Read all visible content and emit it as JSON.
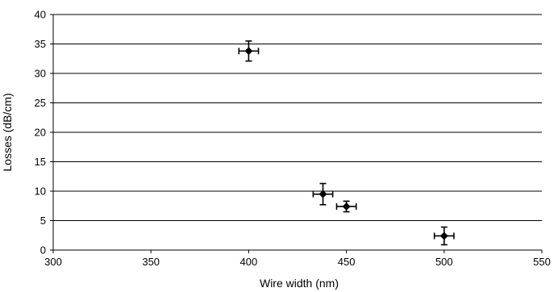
{
  "chart_data": {
    "type": "scatter",
    "title": "",
    "xlabel": "Wire width (nm)",
    "ylabel": "Losses (dB/cm)",
    "xlim": [
      300,
      550
    ],
    "ylim": [
      0,
      40
    ],
    "x_ticks": [
      300,
      350,
      400,
      450,
      500,
      550
    ],
    "y_ticks": [
      0,
      5,
      10,
      15,
      20,
      25,
      30,
      35,
      40
    ],
    "grid": "horizontal",
    "legend": "none",
    "marker": "diamond",
    "colors": {
      "marker": "#000000",
      "grid": "#000000",
      "axis": "#000000"
    },
    "series": [
      {
        "points": [
          {
            "x": 400,
            "y": 33.8,
            "x_err": 5,
            "y_err": 1.7
          },
          {
            "x": 438,
            "y": 9.5,
            "x_err": 5,
            "y_err": 1.8
          },
          {
            "x": 450,
            "y": 7.4,
            "x_err": 5,
            "y_err": 0.9
          },
          {
            "x": 500,
            "y": 2.4,
            "x_err": 5,
            "y_err": 1.5
          }
        ]
      }
    ]
  }
}
